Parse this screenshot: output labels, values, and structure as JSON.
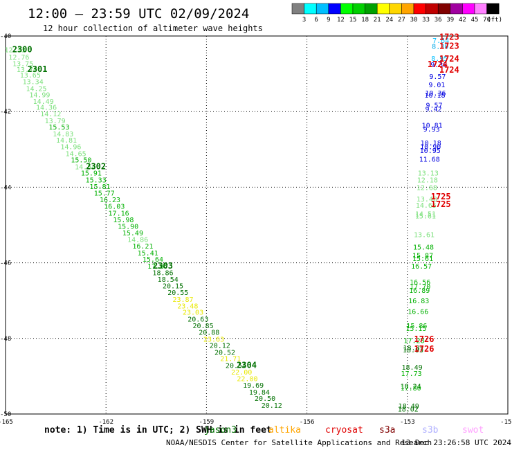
{
  "header": {
    "title": "12:00 — 23:59 UTC 02/09/2024",
    "subtitle": "12 hour collection of altimeter wave heights"
  },
  "colorbar": {
    "unit": "(ft)",
    "colors": [
      "#808080",
      "#00ffff",
      "#00bfff",
      "#0000ff",
      "#00ff00",
      "#00d000",
      "#00a000",
      "#ffff00",
      "#ffd700",
      "#ffa500",
      "#ff0000",
      "#c00000",
      "#800000",
      "#a000a0",
      "#ff00ff",
      "#ff80ff",
      "#000000"
    ],
    "labels": [
      "3",
      "6",
      "9",
      "12",
      "15",
      "18",
      "21",
      "24",
      "27",
      "30",
      "33",
      "36",
      "39",
      "42",
      "45",
      "70"
    ]
  },
  "chart_data": {
    "type": "scatter",
    "xlim": [
      -165,
      -150
    ],
    "ylim": [
      -50,
      -40
    ],
    "grid": true,
    "x_ticks": [
      -165,
      -162,
      -159,
      -156,
      -153,
      -150
    ],
    "x_tick_labels": [
      "-165",
      "-162",
      "-159",
      "-156",
      "-153",
      "-150"
    ],
    "y_ticks": [
      -40,
      -42,
      -44,
      -46,
      -48,
      -50
    ],
    "y_tick_labels": [
      "-40",
      "-42",
      "-44",
      "-46",
      "-48",
      "-50"
    ],
    "points": [
      {
        "x": -164.72,
        "y": -40.36,
        "v": "12.33",
        "c": "#7be07b"
      },
      {
        "x": -164.6,
        "y": -40.55,
        "v": "12.76",
        "c": "#7be07b"
      },
      {
        "x": -164.48,
        "y": -40.72,
        "v": "13.75",
        "c": "#7be07b"
      },
      {
        "x": -164.36,
        "y": -40.88,
        "v": "13.70",
        "c": "#7be07b"
      },
      {
        "x": -164.26,
        "y": -41.03,
        "v": "13.65",
        "c": "#7be07b"
      },
      {
        "x": -164.18,
        "y": -41.2,
        "v": "13.34",
        "c": "#7be07b"
      },
      {
        "x": -164.08,
        "y": -41.38,
        "v": "14.25",
        "c": "#7be07b"
      },
      {
        "x": -163.98,
        "y": -41.55,
        "v": "14.99",
        "c": "#7be07b"
      },
      {
        "x": -163.87,
        "y": -41.72,
        "v": "14.49",
        "c": "#7be07b"
      },
      {
        "x": -163.78,
        "y": -41.88,
        "v": "14.36",
        "c": "#7be07b"
      },
      {
        "x": -163.65,
        "y": -42.05,
        "v": "14.12",
        "c": "#7be07b"
      },
      {
        "x": -163.52,
        "y": -42.23,
        "v": "13.79",
        "c": "#7be07b"
      },
      {
        "x": -163.4,
        "y": -42.4,
        "v": "15.53",
        "c": "#00b000"
      },
      {
        "x": -163.28,
        "y": -42.58,
        "v": "14.83",
        "c": "#7be07b"
      },
      {
        "x": -163.18,
        "y": -42.75,
        "v": "14.81",
        "c": "#7be07b"
      },
      {
        "x": -163.05,
        "y": -42.92,
        "v": "14.96",
        "c": "#7be07b"
      },
      {
        "x": -162.9,
        "y": -43.1,
        "v": "14.65",
        "c": "#7be07b"
      },
      {
        "x": -162.74,
        "y": -43.27,
        "v": "15.50",
        "c": "#00b000"
      },
      {
        "x": -162.62,
        "y": -43.45,
        "v": "14.54",
        "c": "#7be07b"
      },
      {
        "x": -162.44,
        "y": -43.62,
        "v": "15.91",
        "c": "#00b000"
      },
      {
        "x": -162.3,
        "y": -43.8,
        "v": "15.33",
        "c": "#00b000"
      },
      {
        "x": -162.18,
        "y": -43.97,
        "v": "15.81",
        "c": "#00b000"
      },
      {
        "x": -162.05,
        "y": -44.15,
        "v": "15.77",
        "c": "#00b000"
      },
      {
        "x": -161.88,
        "y": -44.32,
        "v": "16.23",
        "c": "#00b000"
      },
      {
        "x": -161.75,
        "y": -44.5,
        "v": "16.03",
        "c": "#00b000"
      },
      {
        "x": -161.62,
        "y": -44.68,
        "v": "17.16",
        "c": "#00b000"
      },
      {
        "x": -161.48,
        "y": -44.85,
        "v": "15.98",
        "c": "#00b000"
      },
      {
        "x": -161.34,
        "y": -45.03,
        "v": "15.90",
        "c": "#00b000"
      },
      {
        "x": -161.2,
        "y": -45.2,
        "v": "15.49",
        "c": "#00b000"
      },
      {
        "x": -161.05,
        "y": -45.38,
        "v": "14.86",
        "c": "#7be07b"
      },
      {
        "x": -160.9,
        "y": -45.55,
        "v": "16.21",
        "c": "#00b000"
      },
      {
        "x": -160.75,
        "y": -45.73,
        "v": "15.41",
        "c": "#00b000"
      },
      {
        "x": -160.6,
        "y": -45.9,
        "v": "15.64",
        "c": "#00b000"
      },
      {
        "x": -160.45,
        "y": -46.08,
        "v": "17.67",
        "c": "#00b000"
      },
      {
        "x": -160.3,
        "y": -46.25,
        "v": "18.86",
        "c": "#007000"
      },
      {
        "x": -160.15,
        "y": -46.43,
        "v": "18.54",
        "c": "#007000"
      },
      {
        "x": -160.0,
        "y": -46.6,
        "v": "20.15",
        "c": "#007000"
      },
      {
        "x": -159.85,
        "y": -46.78,
        "v": "20.55",
        "c": "#007000"
      },
      {
        "x": -159.7,
        "y": -46.96,
        "v": "23.87",
        "c": "#e8e800"
      },
      {
        "x": -159.56,
        "y": -47.13,
        "v": "23.48",
        "c": "#e8e800"
      },
      {
        "x": -159.4,
        "y": -47.3,
        "v": "23.03",
        "c": "#e8e800"
      },
      {
        "x": -159.25,
        "y": -47.48,
        "v": "20.63",
        "c": "#007000"
      },
      {
        "x": -159.1,
        "y": -47.66,
        "v": "20.85",
        "c": "#007000"
      },
      {
        "x": -158.92,
        "y": -47.83,
        "v": "20.88",
        "c": "#007000"
      },
      {
        "x": -158.78,
        "y": -48.01,
        "v": "23.63",
        "c": "#e8e800"
      },
      {
        "x": -158.6,
        "y": -48.18,
        "v": "20.12",
        "c": "#007000"
      },
      {
        "x": -158.45,
        "y": -48.36,
        "v": "20.52",
        "c": "#007000"
      },
      {
        "x": -158.28,
        "y": -48.53,
        "v": "21.71",
        "c": "#e8e800"
      },
      {
        "x": -158.12,
        "y": -48.71,
        "v": "20.54",
        "c": "#007000"
      },
      {
        "x": -157.95,
        "y": -48.88,
        "v": "22.00",
        "c": "#e8e800"
      },
      {
        "x": -157.78,
        "y": -49.06,
        "v": "22.00",
        "c": "#e8e800"
      },
      {
        "x": -157.6,
        "y": -49.23,
        "v": "19.69",
        "c": "#007000"
      },
      {
        "x": -157.42,
        "y": -49.41,
        "v": "19.84",
        "c": "#007000"
      },
      {
        "x": -157.25,
        "y": -49.58,
        "v": "20.50",
        "c": "#007000"
      },
      {
        "x": -157.05,
        "y": -49.76,
        "v": "20.12",
        "c": "#007000"
      },
      {
        "x": -152.0,
        "y": -40.11,
        "v": "7.64",
        "c": "#00bfff"
      },
      {
        "x": -152.02,
        "y": -40.27,
        "v": "8.30",
        "c": "#00a8e8"
      },
      {
        "x": -152.04,
        "y": -40.59,
        "v": "8.95",
        "c": "#00bfff"
      },
      {
        "x": -152.06,
        "y": -40.75,
        "v": "9.38",
        "c": "#0000e0"
      },
      {
        "x": -152.1,
        "y": -41.06,
        "v": "9.57",
        "c": "#0000e0"
      },
      {
        "x": -152.12,
        "y": -41.28,
        "v": "9.01",
        "c": "#0000e0"
      },
      {
        "x": -152.16,
        "y": -41.5,
        "v": "10.36",
        "c": "#0000e0"
      },
      {
        "x": -152.18,
        "y": -41.56,
        "v": "10.18",
        "c": "#0000e0"
      },
      {
        "x": -152.2,
        "y": -41.82,
        "v": "9.57",
        "c": "#0000e0"
      },
      {
        "x": -152.22,
        "y": -41.92,
        "v": "9.42",
        "c": "#0000e0"
      },
      {
        "x": -152.26,
        "y": -42.35,
        "v": "10.81",
        "c": "#0000e0"
      },
      {
        "x": -152.28,
        "y": -42.45,
        "v": "9.93",
        "c": "#0000e0"
      },
      {
        "x": -152.3,
        "y": -42.82,
        "v": "10.18",
        "c": "#0000e0"
      },
      {
        "x": -152.31,
        "y": -42.92,
        "v": "10.90",
        "c": "#0000e0"
      },
      {
        "x": -152.32,
        "y": -43.02,
        "v": "10.95",
        "c": "#0000e0"
      },
      {
        "x": -152.34,
        "y": -43.25,
        "v": "11.68",
        "c": "#0000e0"
      },
      {
        "x": -152.38,
        "y": -43.62,
        "v": "13.13",
        "c": "#7be07b"
      },
      {
        "x": -152.4,
        "y": -43.8,
        "v": "12.18",
        "c": "#7be07b"
      },
      {
        "x": -152.42,
        "y": -44.0,
        "v": "12.68",
        "c": "#7be07b"
      },
      {
        "x": -152.42,
        "y": -44.3,
        "v": "13.40",
        "c": "#7be07b"
      },
      {
        "x": -152.44,
        "y": -44.47,
        "v": "14.65",
        "c": "#7be07b"
      },
      {
        "x": -152.46,
        "y": -44.7,
        "v": "14.51",
        "c": "#7be07b"
      },
      {
        "x": -152.46,
        "y": -44.75,
        "v": "15.61",
        "c": "#7be07b"
      },
      {
        "x": -152.5,
        "y": -45.25,
        "v": "13.61",
        "c": "#7be07b"
      },
      {
        "x": -152.52,
        "y": -45.58,
        "v": "15.48",
        "c": "#00b000"
      },
      {
        "x": -152.54,
        "y": -45.8,
        "v": "15.87",
        "c": "#00b000"
      },
      {
        "x": -152.54,
        "y": -45.88,
        "v": "15.61",
        "c": "#00b000"
      },
      {
        "x": -152.58,
        "y": -46.08,
        "v": "16.57",
        "c": "#00b000"
      },
      {
        "x": -152.62,
        "y": -46.5,
        "v": "16.56",
        "c": "#00b000"
      },
      {
        "x": -152.62,
        "y": -46.62,
        "v": "17.70",
        "c": "#00b000"
      },
      {
        "x": -152.64,
        "y": -46.72,
        "v": "16.89",
        "c": "#00b000"
      },
      {
        "x": -152.66,
        "y": -47.0,
        "v": "16.83",
        "c": "#00b000"
      },
      {
        "x": -152.68,
        "y": -47.28,
        "v": "16.66",
        "c": "#00b000"
      },
      {
        "x": -152.72,
        "y": -47.66,
        "v": "15.86",
        "c": "#00b000"
      },
      {
        "x": -152.74,
        "y": -47.73,
        "v": "15.15",
        "c": "#00b000"
      },
      {
        "x": -152.8,
        "y": -48.05,
        "v": "17.28",
        "c": "#00b000"
      },
      {
        "x": -152.82,
        "y": -48.24,
        "v": "18.81",
        "c": "#007000"
      },
      {
        "x": -152.83,
        "y": -48.3,
        "v": "18.93",
        "c": "#007000"
      },
      {
        "x": -152.86,
        "y": -48.75,
        "v": "18.49",
        "c": "#007000"
      },
      {
        "x": -152.88,
        "y": -48.92,
        "v": "17.73",
        "c": "#00b000"
      },
      {
        "x": -152.9,
        "y": -49.26,
        "v": "18.24",
        "c": "#007000"
      },
      {
        "x": -152.9,
        "y": -49.3,
        "v": "17.80",
        "c": "#00b000"
      },
      {
        "x": -152.96,
        "y": -49.78,
        "v": "18.49",
        "c": "#007000"
      },
      {
        "x": -152.98,
        "y": -49.86,
        "v": "18.02",
        "c": "#007000"
      }
    ],
    "time_labels": [
      {
        "x": -164.5,
        "y": -40.36,
        "v": "2300",
        "c": "#007000"
      },
      {
        "x": -164.05,
        "y": -40.88,
        "v": "2301",
        "c": "#007000"
      },
      {
        "x": -162.3,
        "y": -43.45,
        "v": "2302",
        "c": "#007000"
      },
      {
        "x": -160.3,
        "y": -46.08,
        "v": "2303",
        "c": "#007000"
      },
      {
        "x": -157.8,
        "y": -48.71,
        "v": "2304",
        "c": "#007000"
      },
      {
        "x": -151.75,
        "y": -40.03,
        "v": "1723",
        "c": "#e00000"
      },
      {
        "x": -151.75,
        "y": -40.27,
        "v": "1723",
        "c": "#e00000"
      },
      {
        "x": -151.75,
        "y": -40.6,
        "v": "1724",
        "c": "#e00000"
      },
      {
        "x": -151.75,
        "y": -40.9,
        "v": "1724",
        "c": "#e00000"
      },
      {
        "x": -152.1,
        "y": -40.75,
        "v": "1724",
        "c": "#e00000"
      },
      {
        "x": -152.0,
        "y": -44.25,
        "v": "1725",
        "c": "#e00000"
      },
      {
        "x": -152.0,
        "y": -44.45,
        "v": "1725",
        "c": "#e00000"
      },
      {
        "x": -152.5,
        "y": -48.02,
        "v": "1726",
        "c": "#e00000"
      },
      {
        "x": -152.5,
        "y": -48.28,
        "v": "1726",
        "c": "#e00000"
      }
    ]
  },
  "footer": {
    "note": "note:  1) Time is in UTC; 2) SWH is in feet",
    "satellites": [
      {
        "name": "jason3",
        "color": "#007000"
      },
      {
        "name": "altika",
        "color": "#ffa500"
      },
      {
        "name": "cryosat",
        "color": "#e00000"
      },
      {
        "name": "s3a",
        "color": "#800000"
      },
      {
        "name": "s3b",
        "color": "#b0b0ff"
      },
      {
        "name": "swot",
        "color": "#ffa0ff"
      }
    ],
    "credit": "NOAA/NESDIS Center for Satellite Applications and Research",
    "timestamp": "13 Dec 23:26:58 UTC 2024"
  }
}
